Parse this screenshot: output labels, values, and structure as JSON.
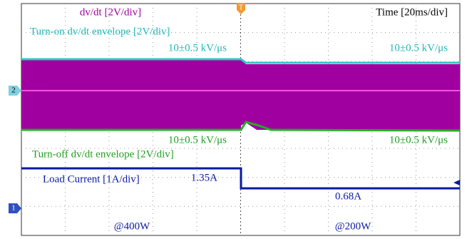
{
  "header": {
    "channel_label": "dv/dt [2V/div]",
    "timebase": "Time [20ms/div]",
    "trigger_marker": "T"
  },
  "annotations": {
    "turn_on_envelope": "Turn-on dv/dt envelope [2V/div]",
    "turn_on_left": "10±0.5 kV/μs",
    "turn_on_right": "10±0.5 kV/μs",
    "turn_off_left": "10±0.5 kV/μs",
    "turn_off_right": "10±0.5 kV/μs",
    "turn_off_envelope": "Turn-off dv/dt envelope [2V/div]",
    "load_current": "Load Current [1A/div]",
    "current_left": "1.35A",
    "current_right": "0.68A",
    "power_left": "@400W",
    "power_right": "@200W"
  },
  "channel_markers": [
    "2",
    "1"
  ]
}
